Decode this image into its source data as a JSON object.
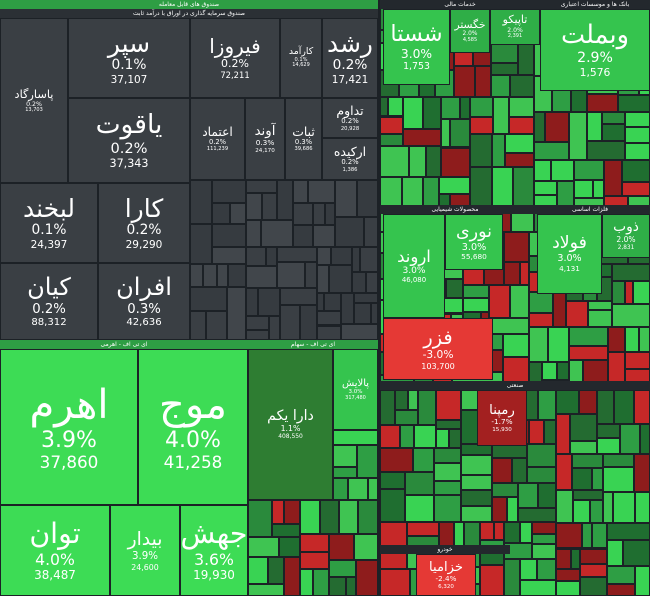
{
  "sections": [
    {
      "title": "صندوق های قابل معامله",
      "subtitle": "صندوق سرمایه گذاری در اوراق با درآمد ثابت",
      "tiles": [
        {
          "name": "پاسارگاد",
          "change": "0.2%",
          "volume": "13,703"
        },
        {
          "name": "سپر",
          "change": "0.1%",
          "volume": "37,107"
        },
        {
          "name": "یاقوت",
          "change": "0.2%",
          "volume": "37,343"
        },
        {
          "name": "فیروزا",
          "change": "0.2%",
          "volume": "72,211"
        },
        {
          "name": "کارآمد",
          "change": "0.1%",
          "volume": "14,629"
        },
        {
          "name": "رشد",
          "change": "0.2%",
          "volume": "17,421"
        },
        {
          "name": "اعتماد",
          "change": "0.2%",
          "volume": "111,239"
        },
        {
          "name": "آوند",
          "change": "0.3%",
          "volume": "24,170"
        },
        {
          "name": "ثبات",
          "change": "0.3%",
          "volume": "39,686"
        },
        {
          "name": "تداوم",
          "change": "0.2%",
          "volume": "20,928"
        },
        {
          "name": "ارکیده",
          "change": "0.2%",
          "volume": "1,386"
        },
        {
          "name": "لبخند",
          "change": "0.1%",
          "volume": "24,397"
        },
        {
          "name": "کارا",
          "change": "0.2%",
          "volume": "29,290"
        },
        {
          "name": "کیان",
          "change": "0.2%",
          "volume": "88,312"
        },
        {
          "name": "افران",
          "change": "0.3%",
          "volume": "42,636"
        }
      ]
    },
    {
      "title": "ای تی اف - اهرمی",
      "tiles": [
        {
          "name": "اهرم",
          "change": "3.9%",
          "volume": "37,860"
        },
        {
          "name": "موج",
          "change": "4.0%",
          "volume": "41,258"
        },
        {
          "name": "توان",
          "change": "4.0%",
          "volume": "38,487"
        },
        {
          "name": "بیدار",
          "change": "3.9%",
          "volume": "24,600"
        },
        {
          "name": "جهش",
          "change": "3.6%",
          "volume": "19,930"
        }
      ]
    },
    {
      "title": "ای تی اف - سهام",
      "tiles": [
        {
          "name": "دارا یکم",
          "change": "1.1%",
          "volume": "408,550"
        },
        {
          "name": "پالایش",
          "change": "3.0%",
          "volume": "317,480"
        }
      ]
    },
    {
      "title": "خدمات مالی",
      "tiles": [
        {
          "name": "شستا",
          "change": "3.0%",
          "volume": "1,753"
        },
        {
          "name": "خگستر",
          "change": "2.0%",
          "volume": "4,585"
        },
        {
          "name": "تاپیکو",
          "change": "2.0%",
          "volume": "2,391"
        }
      ]
    },
    {
      "title": "بانک ها و موسسات اعتباری",
      "tiles": [
        {
          "name": "وبملت",
          "change": "2.9%",
          "volume": "1,576"
        }
      ]
    },
    {
      "title": "محصولات شیمیایی",
      "tiles": [
        {
          "name": "اروند",
          "change": "3.0%",
          "volume": "46,080"
        },
        {
          "name": "نوری",
          "change": "3.0%",
          "volume": "55,680"
        },
        {
          "name": "فزر",
          "change": "-3.0%",
          "volume": "103,700"
        }
      ]
    },
    {
      "title": "فلزات اساسی",
      "tiles": [
        {
          "name": "فولاد",
          "change": "3.0%",
          "volume": "4,131"
        },
        {
          "name": "ذوب",
          "change": "2.0%",
          "volume": "2,831"
        }
      ]
    },
    {
      "title": "صنعتی",
      "tiles": [
        {
          "name": "رمپنا",
          "change": "-1.7%",
          "volume": "15,930"
        }
      ]
    },
    {
      "title": "خودرو",
      "tiles": [
        {
          "name": "خزامیا",
          "change": "-2.4%",
          "volume": "6,320"
        }
      ]
    }
  ]
}
